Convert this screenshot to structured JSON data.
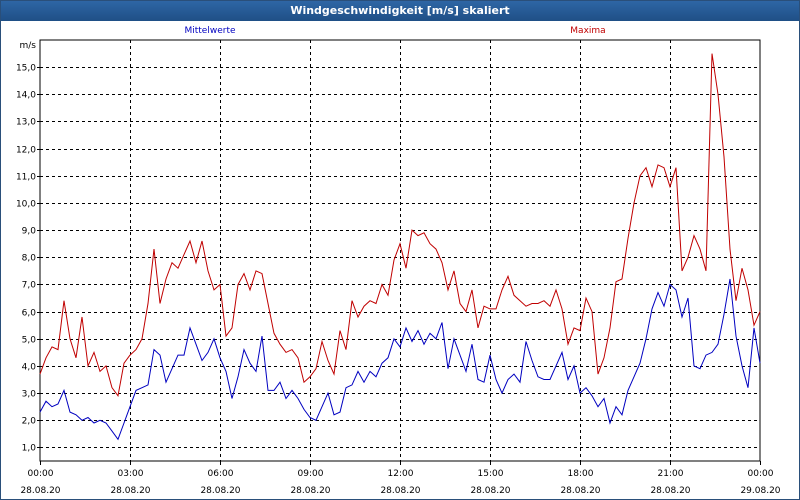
{
  "window": {
    "title": "Windgeschwindigkeit [m/s] skaliert"
  },
  "chart_data": {
    "type": "line",
    "ylabel": "m/s",
    "ylim": [
      0.5,
      16
    ],
    "yticks": [
      "1,0",
      "2,0",
      "3,0",
      "4,0",
      "5,0",
      "6,0",
      "7,0",
      "8,0",
      "9,0",
      "10,0",
      "11,0",
      "12,0",
      "13,0",
      "14,0",
      "15,0"
    ],
    "xlim": [
      0,
      24
    ],
    "xticks": [
      {
        "time": "00:00",
        "date": "28.08.20"
      },
      {
        "time": "03:00",
        "date": "28.08.20"
      },
      {
        "time": "06:00",
        "date": "28.08.20"
      },
      {
        "time": "09:00",
        "date": "28.08.20"
      },
      {
        "time": "12:00",
        "date": "28.08.20"
      },
      {
        "time": "15:00",
        "date": "28.08.20"
      },
      {
        "time": "18:00",
        "date": "28.08.20"
      },
      {
        "time": "21:00",
        "date": "28.08.20"
      },
      {
        "time": "00:00",
        "date": "29.08.20"
      }
    ],
    "grid": true,
    "series": [
      {
        "name": "Mittelwerte",
        "color": "#0000c0",
        "points": [
          [
            0.0,
            2.3
          ],
          [
            0.2,
            2.7
          ],
          [
            0.4,
            2.5
          ],
          [
            0.6,
            2.6
          ],
          [
            0.8,
            3.1
          ],
          [
            1.0,
            2.3
          ],
          [
            1.2,
            2.2
          ],
          [
            1.4,
            2.0
          ],
          [
            1.6,
            2.1
          ],
          [
            1.8,
            1.9
          ],
          [
            2.0,
            2.0
          ],
          [
            2.2,
            1.9
          ],
          [
            2.4,
            1.6
          ],
          [
            2.6,
            1.3
          ],
          [
            2.8,
            1.9
          ],
          [
            3.0,
            2.5
          ],
          [
            3.2,
            3.1
          ],
          [
            3.4,
            3.2
          ],
          [
            3.6,
            3.3
          ],
          [
            3.8,
            4.6
          ],
          [
            4.0,
            4.4
          ],
          [
            4.2,
            3.4
          ],
          [
            4.4,
            3.9
          ],
          [
            4.6,
            4.4
          ],
          [
            4.8,
            4.4
          ],
          [
            5.0,
            5.4
          ],
          [
            5.2,
            4.8
          ],
          [
            5.4,
            4.2
          ],
          [
            5.6,
            4.5
          ],
          [
            5.8,
            5.0
          ],
          [
            6.0,
            4.3
          ],
          [
            6.2,
            3.8
          ],
          [
            6.4,
            2.8
          ],
          [
            6.6,
            3.6
          ],
          [
            6.8,
            4.6
          ],
          [
            7.0,
            4.1
          ],
          [
            7.2,
            3.8
          ],
          [
            7.4,
            5.1
          ],
          [
            7.6,
            3.1
          ],
          [
            7.8,
            3.1
          ],
          [
            8.0,
            3.4
          ],
          [
            8.2,
            2.8
          ],
          [
            8.4,
            3.1
          ],
          [
            8.6,
            2.8
          ],
          [
            8.8,
            2.4
          ],
          [
            9.0,
            2.1
          ],
          [
            9.2,
            2.0
          ],
          [
            9.4,
            2.5
          ],
          [
            9.6,
            3.0
          ],
          [
            9.8,
            2.2
          ],
          [
            10.0,
            2.3
          ],
          [
            10.2,
            3.2
          ],
          [
            10.4,
            3.3
          ],
          [
            10.6,
            3.8
          ],
          [
            10.8,
            3.4
          ],
          [
            11.0,
            3.8
          ],
          [
            11.2,
            3.6
          ],
          [
            11.4,
            4.1
          ],
          [
            11.6,
            4.3
          ],
          [
            11.8,
            5.0
          ],
          [
            12.0,
            4.7
          ],
          [
            12.2,
            5.4
          ],
          [
            12.4,
            4.9
          ],
          [
            12.6,
            5.3
          ],
          [
            12.8,
            4.8
          ],
          [
            13.0,
            5.2
          ],
          [
            13.2,
            5.0
          ],
          [
            13.4,
            5.6
          ],
          [
            13.6,
            3.9
          ],
          [
            13.8,
            5.0
          ],
          [
            14.0,
            4.4
          ],
          [
            14.2,
            3.8
          ],
          [
            14.4,
            4.8
          ],
          [
            14.6,
            3.5
          ],
          [
            14.8,
            3.4
          ],
          [
            15.0,
            4.4
          ],
          [
            15.2,
            3.5
          ],
          [
            15.4,
            3.0
          ],
          [
            15.6,
            3.5
          ],
          [
            15.8,
            3.7
          ],
          [
            16.0,
            3.4
          ],
          [
            16.2,
            4.9
          ],
          [
            16.4,
            4.2
          ],
          [
            16.6,
            3.6
          ],
          [
            16.8,
            3.5
          ],
          [
            17.0,
            3.5
          ],
          [
            17.2,
            4.0
          ],
          [
            17.4,
            4.5
          ],
          [
            17.6,
            3.5
          ],
          [
            17.8,
            4.0
          ],
          [
            18.0,
            3.0
          ],
          [
            18.2,
            3.2
          ],
          [
            18.4,
            2.9
          ],
          [
            18.6,
            2.5
          ],
          [
            18.8,
            2.8
          ],
          [
            19.0,
            1.9
          ],
          [
            19.2,
            2.5
          ],
          [
            19.4,
            2.2
          ],
          [
            19.6,
            3.1
          ],
          [
            19.8,
            3.6
          ],
          [
            20.0,
            4.1
          ],
          [
            20.2,
            5.0
          ],
          [
            20.4,
            6.1
          ],
          [
            20.6,
            6.7
          ],
          [
            20.8,
            6.2
          ],
          [
            21.0,
            7.0
          ],
          [
            21.2,
            6.8
          ],
          [
            21.4,
            5.8
          ],
          [
            21.6,
            6.5
          ],
          [
            21.8,
            4.0
          ],
          [
            22.0,
            3.9
          ],
          [
            22.2,
            4.4
          ],
          [
            22.4,
            4.5
          ],
          [
            22.6,
            4.8
          ],
          [
            22.8,
            5.9
          ],
          [
            23.0,
            7.2
          ],
          [
            23.2,
            5.1
          ],
          [
            23.4,
            4.0
          ],
          [
            23.6,
            3.2
          ],
          [
            23.8,
            5.4
          ],
          [
            24.0,
            4.1
          ]
        ]
      },
      {
        "name": "Maxima",
        "color": "#c00000",
        "points": [
          [
            0.0,
            3.7
          ],
          [
            0.2,
            4.3
          ],
          [
            0.4,
            4.7
          ],
          [
            0.6,
            4.6
          ],
          [
            0.8,
            6.4
          ],
          [
            1.0,
            5.0
          ],
          [
            1.2,
            4.3
          ],
          [
            1.4,
            5.8
          ],
          [
            1.6,
            4.0
          ],
          [
            1.8,
            4.5
          ],
          [
            2.0,
            3.8
          ],
          [
            2.2,
            4.0
          ],
          [
            2.4,
            3.2
          ],
          [
            2.6,
            2.9
          ],
          [
            2.8,
            4.1
          ],
          [
            3.0,
            4.4
          ],
          [
            3.2,
            4.6
          ],
          [
            3.4,
            5.0
          ],
          [
            3.6,
            6.3
          ],
          [
            3.8,
            8.3
          ],
          [
            4.0,
            6.3
          ],
          [
            4.2,
            7.2
          ],
          [
            4.4,
            7.8
          ],
          [
            4.6,
            7.6
          ],
          [
            4.8,
            8.1
          ],
          [
            5.0,
            8.6
          ],
          [
            5.2,
            7.8
          ],
          [
            5.4,
            8.6
          ],
          [
            5.6,
            7.5
          ],
          [
            5.8,
            6.8
          ],
          [
            6.0,
            7.0
          ],
          [
            6.2,
            5.1
          ],
          [
            6.4,
            5.4
          ],
          [
            6.6,
            7.0
          ],
          [
            6.8,
            7.4
          ],
          [
            7.0,
            6.8
          ],
          [
            7.2,
            7.5
          ],
          [
            7.4,
            7.4
          ],
          [
            7.6,
            6.3
          ],
          [
            7.8,
            5.2
          ],
          [
            8.0,
            4.8
          ],
          [
            8.2,
            4.5
          ],
          [
            8.4,
            4.6
          ],
          [
            8.6,
            4.3
          ],
          [
            8.8,
            3.4
          ],
          [
            9.0,
            3.6
          ],
          [
            9.2,
            3.9
          ],
          [
            9.4,
            4.9
          ],
          [
            9.6,
            4.2
          ],
          [
            9.8,
            3.7
          ],
          [
            10.0,
            5.3
          ],
          [
            10.2,
            4.6
          ],
          [
            10.4,
            6.4
          ],
          [
            10.6,
            5.8
          ],
          [
            10.8,
            6.2
          ],
          [
            11.0,
            6.4
          ],
          [
            11.2,
            6.3
          ],
          [
            11.4,
            7.0
          ],
          [
            11.6,
            6.6
          ],
          [
            11.8,
            7.9
          ],
          [
            12.0,
            8.5
          ],
          [
            12.2,
            7.6
          ],
          [
            12.4,
            9.0
          ],
          [
            12.6,
            8.8
          ],
          [
            12.8,
            8.9
          ],
          [
            13.0,
            8.5
          ],
          [
            13.2,
            8.3
          ],
          [
            13.4,
            7.8
          ],
          [
            13.6,
            6.8
          ],
          [
            13.8,
            7.5
          ],
          [
            14.0,
            6.3
          ],
          [
            14.2,
            6.0
          ],
          [
            14.4,
            6.8
          ],
          [
            14.6,
            5.4
          ],
          [
            14.8,
            6.2
          ],
          [
            15.0,
            6.1
          ],
          [
            15.2,
            6.1
          ],
          [
            15.4,
            6.8
          ],
          [
            15.6,
            7.3
          ],
          [
            15.8,
            6.6
          ],
          [
            16.0,
            6.4
          ],
          [
            16.2,
            6.2
          ],
          [
            16.4,
            6.3
          ],
          [
            16.6,
            6.3
          ],
          [
            16.8,
            6.4
          ],
          [
            17.0,
            6.2
          ],
          [
            17.2,
            6.8
          ],
          [
            17.4,
            6.1
          ],
          [
            17.6,
            4.8
          ],
          [
            17.8,
            5.4
          ],
          [
            18.0,
            5.3
          ],
          [
            18.2,
            6.5
          ],
          [
            18.4,
            6.0
          ],
          [
            18.6,
            3.7
          ],
          [
            18.8,
            4.3
          ],
          [
            19.0,
            5.4
          ],
          [
            19.2,
            7.1
          ],
          [
            19.4,
            7.2
          ],
          [
            19.6,
            8.7
          ],
          [
            19.8,
            10.0
          ],
          [
            20.0,
            11.0
          ],
          [
            20.2,
            11.3
          ],
          [
            20.4,
            10.6
          ],
          [
            20.6,
            11.4
          ],
          [
            20.8,
            11.3
          ],
          [
            21.0,
            10.6
          ],
          [
            21.2,
            11.3
          ],
          [
            21.4,
            7.5
          ],
          [
            21.6,
            8.0
          ],
          [
            21.8,
            8.8
          ],
          [
            22.0,
            8.3
          ],
          [
            22.2,
            7.5
          ],
          [
            22.4,
            15.5
          ],
          [
            22.6,
            14.0
          ],
          [
            22.8,
            11.7
          ],
          [
            23.0,
            8.3
          ],
          [
            23.2,
            6.4
          ],
          [
            23.4,
            7.6
          ],
          [
            23.6,
            6.8
          ],
          [
            23.8,
            5.5
          ],
          [
            24.0,
            6.0
          ]
        ]
      }
    ]
  }
}
